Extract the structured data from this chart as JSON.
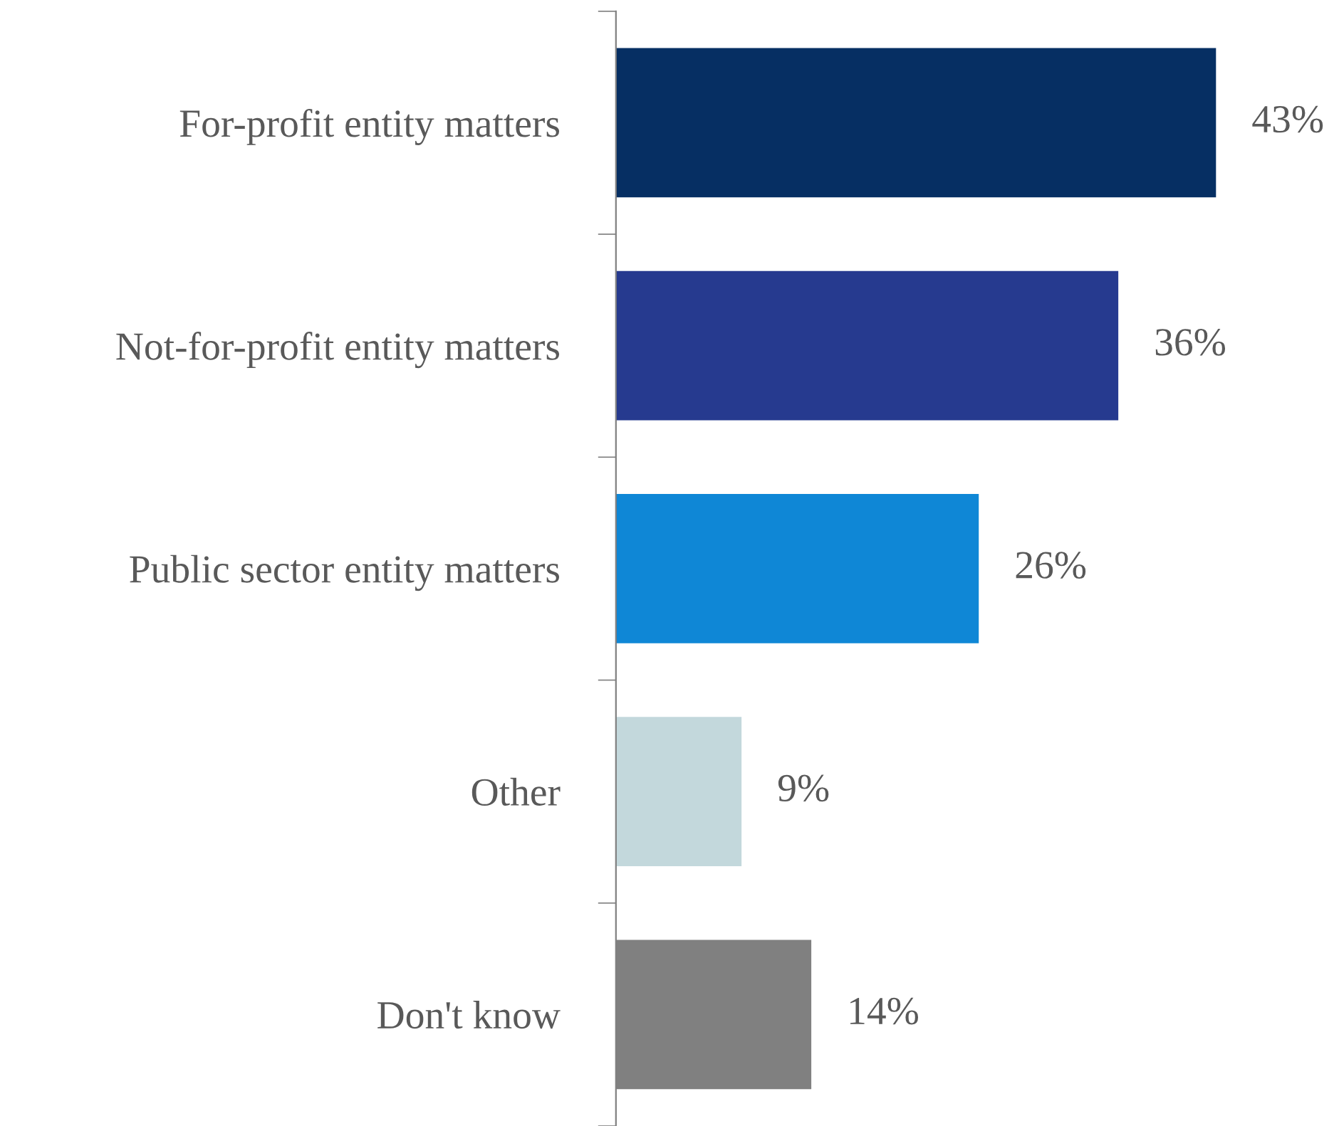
{
  "chart_data": {
    "type": "bar",
    "orientation": "horizontal",
    "categories": [
      "For-profit entity matters",
      "Not-for-profit entity matters",
      "Public sector entity matters",
      "Other",
      "Don't know"
    ],
    "values": [
      43,
      36,
      26,
      9,
      14
    ],
    "colors": [
      "#062f63",
      "#263a8f",
      "#0f87d6",
      "#c3d8dc",
      "#808080"
    ],
    "value_labels": [
      "43%",
      "36%",
      "26%",
      "9%",
      "14%"
    ],
    "tick_labels": "y"
  }
}
